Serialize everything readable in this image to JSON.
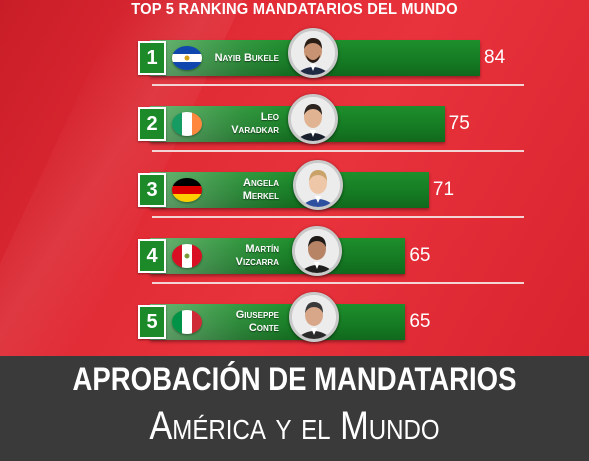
{
  "chart_data": {
    "type": "bar",
    "title": "TOP 5 RANKING MANDATARIOS DEL MUNDO",
    "categories": [
      "Nayib Bukele",
      "Leo Varadkar",
      "Angela Merkel",
      "Martín Vizcarra",
      "Giuseppe Conte"
    ],
    "ranks": [
      "1",
      "2",
      "3",
      "4",
      "5"
    ],
    "name_lines": [
      [
        "Nayib Bukele"
      ],
      [
        "Leo",
        "Varadkar"
      ],
      [
        "Angela",
        "Merkel"
      ],
      [
        "Martín",
        "Vizcarra"
      ],
      [
        "Giuseppe",
        "Conte"
      ]
    ],
    "values": [
      84,
      75,
      71,
      65,
      65
    ],
    "flags": [
      "el-salvador-flag",
      "ireland-flag",
      "germany-flag",
      "peru-flag",
      "italy-flag"
    ],
    "ylim": [
      0,
      100
    ],
    "orientation": "horizontal",
    "bar_color": "#157a23"
  },
  "banner": {
    "line1": "APROBACIÓN DE MANDATARIOS",
    "line2": "América y el Mundo"
  }
}
